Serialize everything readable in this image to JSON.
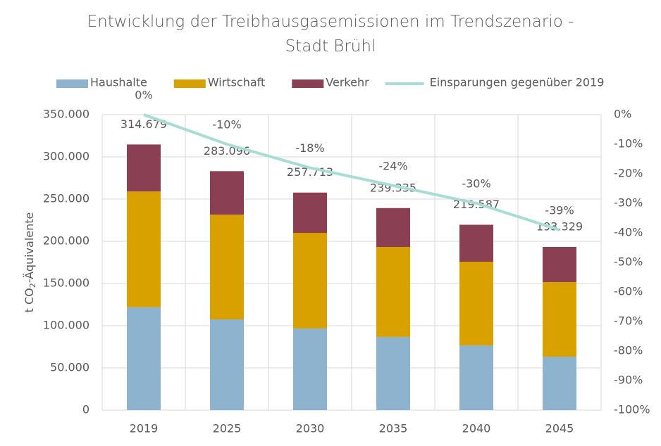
{
  "chart_data": {
    "type": "bar",
    "stacked": true,
    "title": "Entwicklung der Treibhausgasemissionen im Trendszenario - Stadt Brühl",
    "ylabel_parts": [
      "t CO",
      "2",
      "-Äquivalente"
    ],
    "categories": [
      "2019",
      "2025",
      "2030",
      "2035",
      "2040",
      "2045"
    ],
    "series": [
      {
        "name": "Haushalte",
        "color": "#8db3cf",
        "values": [
          122000,
          107500,
          96700,
          86700,
          76700,
          63300
        ]
      },
      {
        "name": "Wirtschaft",
        "color": "#d9a100",
        "values": [
          137000,
          124000,
          113300,
          106600,
          99100,
          88400
        ]
      },
      {
        "name": "Verkehr",
        "color": "#8b3f52",
        "values": [
          55679,
          51596,
          47713,
          46035,
          43787,
          41629
        ]
      },
      {
        "name": "Einsparungen gegenüber 2019",
        "color": "#a8ddd6",
        "type": "line",
        "axis": "y2",
        "values": [
          0,
          -10,
          -18,
          -24,
          -30,
          -39
        ],
        "value_labels": [
          "0%",
          "-10%",
          "-18%",
          "-24%",
          "-30%",
          "-39%"
        ]
      }
    ],
    "totals": {
      "values": [
        314679,
        283096,
        257713,
        239335,
        219587,
        193329
      ],
      "value_labels": [
        "314.679",
        "283.096",
        "257.713",
        "239.335",
        "219.587",
        "193.329"
      ]
    },
    "ylim": [
      0,
      350000
    ],
    "yticks": [
      0,
      {
        "value": 50000,
        "label": "50.000"
      },
      {
        "value": 100000,
        "label": "100.000"
      },
      {
        "value": 150000,
        "label": "150.000"
      },
      {
        "value": 200000,
        "label": "200.000"
      },
      {
        "value": 250000,
        "label": "250.000"
      },
      {
        "value": 300000,
        "label": "300.000"
      },
      {
        "value": 350000,
        "label": "350.000"
      }
    ],
    "y2lim": [
      -100,
      0
    ],
    "y2ticks": [
      {
        "value": 0,
        "label": "0%"
      },
      {
        "value": -10,
        "label": "-10%"
      },
      {
        "value": -20,
        "label": "-20%"
      },
      {
        "value": -30,
        "label": "-30%"
      },
      {
        "value": -40,
        "label": "-40%"
      },
      {
        "value": -50,
        "label": "-50%"
      },
      {
        "value": -60,
        "label": "-60%"
      },
      {
        "value": -70,
        "label": "-70%"
      },
      {
        "value": -80,
        "label": "-80%"
      },
      {
        "value": -90,
        "label": "-90%"
      },
      {
        "value": -100,
        "label": "-100%"
      }
    ],
    "grid": true,
    "legend": "top"
  }
}
